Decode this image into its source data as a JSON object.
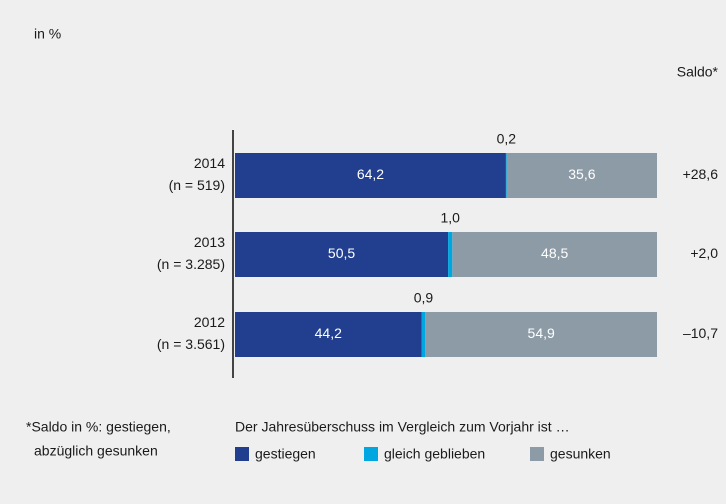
{
  "chart_data": {
    "type": "stacked-bar-horizontal",
    "unit_label": "in %",
    "categories": [
      "2014",
      "2013",
      "2012"
    ],
    "category_notes": [
      "(n = 519)",
      "(n = 3.285)",
      "(n = 3.561)"
    ],
    "series": [
      {
        "name": "gestiegen",
        "color": "#213f8e",
        "values": [
          64.2,
          50.5,
          44.2
        ],
        "value_labels": [
          "64,2",
          "50,5",
          "44,2"
        ]
      },
      {
        "name": "gleich geblieben",
        "color": "#00a6e0",
        "values": [
          0.2,
          1.0,
          0.9
        ],
        "value_labels": [
          "0,2",
          "1,0",
          "0,9"
        ]
      },
      {
        "name": "gesunken",
        "color": "#8d9ba7",
        "values": [
          35.6,
          48.5,
          54.9
        ],
        "value_labels": [
          "35,6",
          "48,5",
          "54,9"
        ]
      }
    ],
    "xlim": [
      0,
      100
    ],
    "saldo": {
      "title": "Saldo*",
      "values": [
        28.6,
        2.0,
        -10.7
      ],
      "value_labels": [
        "+28,6",
        "+2,0",
        "–10,7"
      ]
    },
    "legend_title": "Der Jahresüberschuss im Vergleich zum Vorjahr ist …",
    "footnote": [
      "*Saldo in %: gestiegen,",
      "abzüglich gesunken"
    ]
  }
}
